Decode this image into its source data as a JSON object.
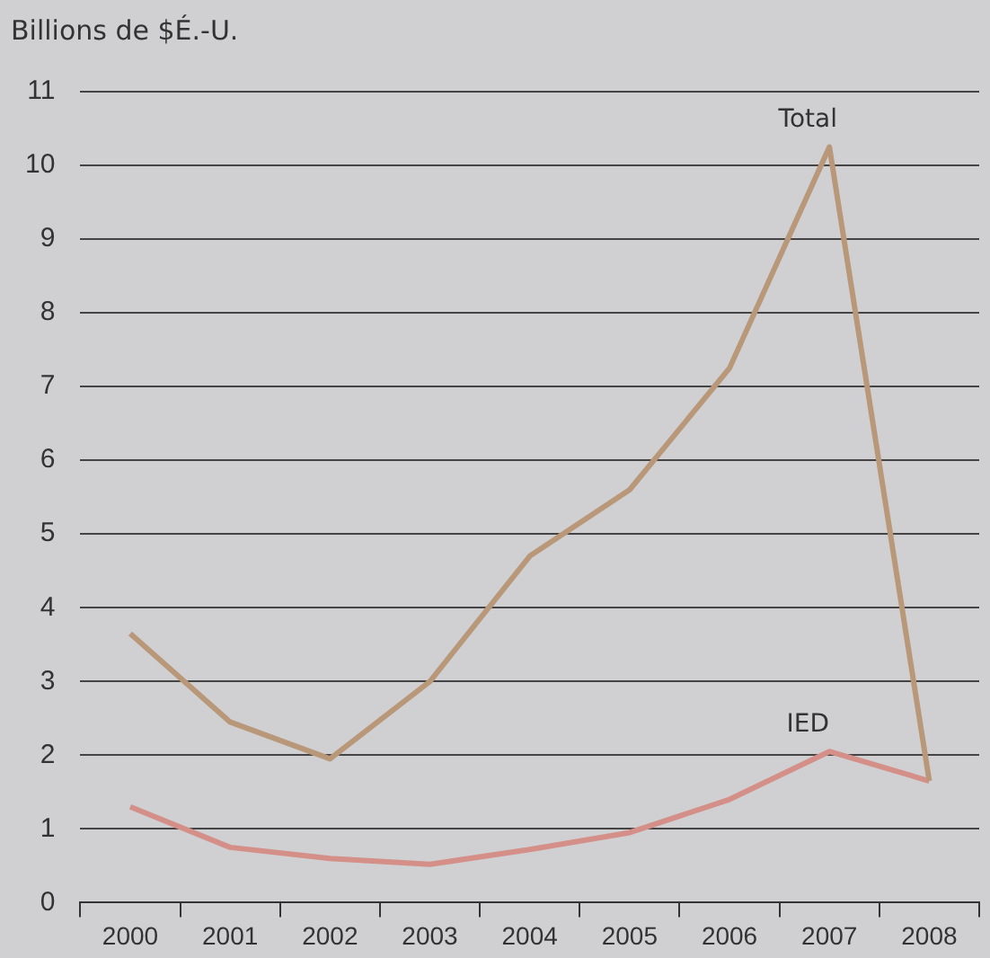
{
  "chart_data": {
    "type": "line",
    "ylabel": "Billions de $É.-U.",
    "categories": [
      "2000",
      "2001",
      "2002",
      "2003",
      "2004",
      "2005",
      "2006",
      "2007",
      "2008"
    ],
    "series": [
      {
        "name": "Total",
        "color": "#b89878",
        "values": [
          3.65,
          2.45,
          1.95,
          3.0,
          4.7,
          5.6,
          7.25,
          10.25,
          1.65
        ]
      },
      {
        "name": "IED",
        "color": "#d49088",
        "values": [
          1.3,
          0.75,
          0.6,
          0.52,
          0.72,
          0.95,
          1.4,
          2.05,
          1.65
        ]
      }
    ],
    "ylim": [
      0,
      11
    ],
    "yticks": [
      0,
      1,
      2,
      3,
      4,
      5,
      6,
      7,
      8,
      9,
      10,
      11
    ],
    "grid": "y",
    "legend": false,
    "marker": "none",
    "line_style": "solid"
  }
}
